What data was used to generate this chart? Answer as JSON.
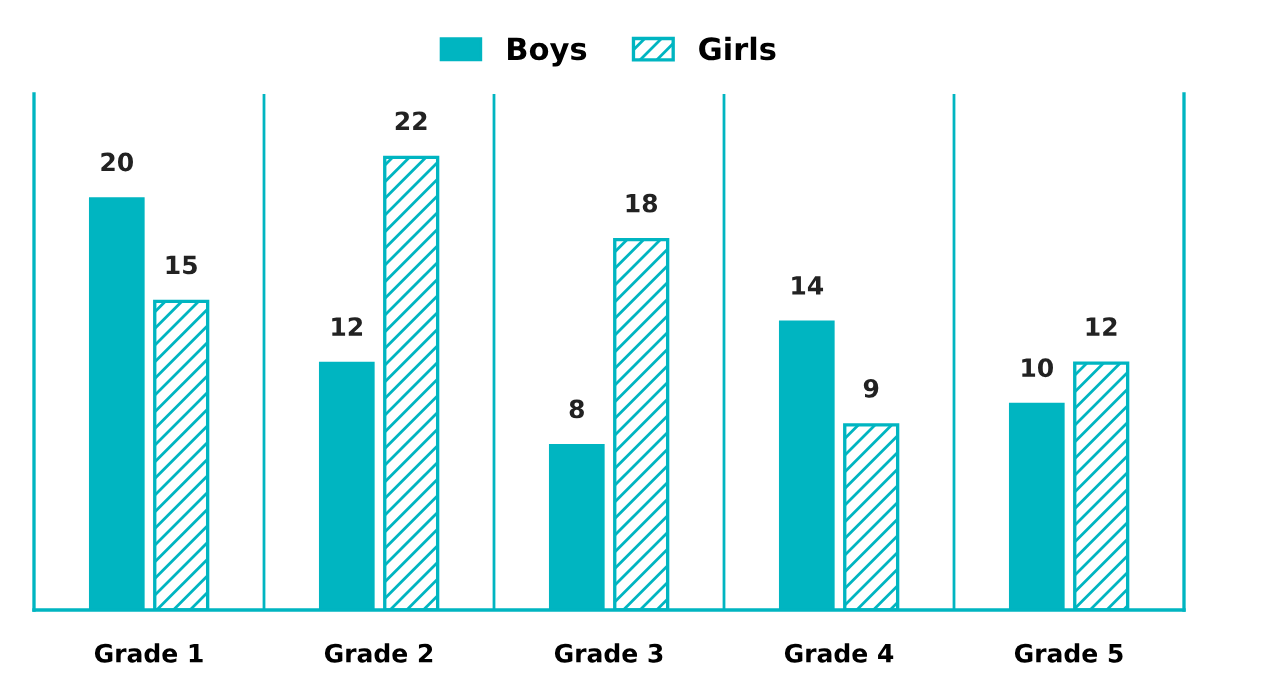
{
  "chart_data": {
    "type": "bar",
    "categories": [
      "Grade 1",
      "Grade 2",
      "Grade 3",
      "Grade 4",
      "Grade 5"
    ],
    "series": [
      {
        "name": "Boys",
        "color": "#00b5c1",
        "values": [
          20,
          12,
          8,
          14,
          10
        ]
      },
      {
        "name": "Girls",
        "color": "#00b5c1",
        "values": [
          15,
          22,
          18,
          9,
          12
        ]
      }
    ],
    "data_labels": true,
    "grid": "x",
    "legend": "top"
  }
}
